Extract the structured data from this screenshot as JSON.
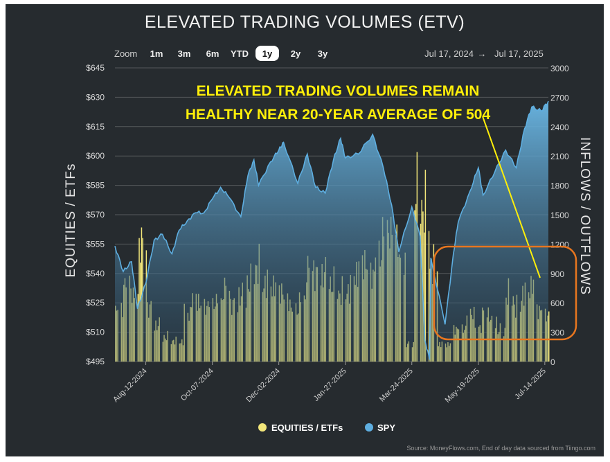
{
  "chart_data": {
    "type": "bar+area",
    "title": "ELEVATED TRADING VOLUMES (ETV)",
    "annotation": [
      "ELEVATED TRADING VOLUMES REMAIN",
      "HEALTHY NEAR 20-YEAR AVERAGE OF 504"
    ],
    "zoom": {
      "label": "Zoom",
      "options": [
        "1m",
        "3m",
        "6m",
        "YTD",
        "1y",
        "2y",
        "3y"
      ],
      "selected": "1y"
    },
    "range": {
      "from": "Jul 17, 2024",
      "to": "Jul 17, 2025",
      "separator": "→"
    },
    "ylabel_left": "EQUITIES / ETFs",
    "ylabel_right": "INFLOWS / OUTFLOWS",
    "y_left_ticks": [
      "$645",
      "$630",
      "$615",
      "$600",
      "$585",
      "$570",
      "$555",
      "$540",
      "$525",
      "$510",
      "$495"
    ],
    "y_right_ticks": [
      "3000",
      "2700",
      "2400",
      "2100",
      "1800",
      "1500",
      "1200",
      "900",
      "600",
      "300",
      "0"
    ],
    "ylim_left": [
      495,
      645
    ],
    "ylim_right": [
      0,
      3000
    ],
    "x_ticks": [
      "Aug-12-2024",
      "Oct-07-2024",
      "Dec-02-2024",
      "Jan-27-2025",
      "Mar-24-2025",
      "May-19-2025",
      "Jul-14-2025"
    ],
    "series": [
      {
        "name": "EQUITIES / ETFs",
        "type": "bar",
        "axis": "right",
        "color": "#f2e67a",
        "values_by_week": [
          600,
          900,
          760,
          1380,
          620,
          420,
          280,
          240,
          230,
          560,
          720,
          640,
          660,
          700,
          860,
          660,
          760,
          900,
          1080,
          900,
          880,
          820,
          700,
          600,
          720,
          1080,
          1000,
          1020,
          880,
          780,
          820,
          1020,
          1160,
          1020,
          1240,
          1520,
          1480,
          1120,
          200,
          1950,
          1750,
          1100,
          200,
          200,
          380,
          380,
          560,
          400,
          560,
          460,
          360,
          760,
          620,
          780,
          880,
          600,
          540
        ]
      },
      {
        "name": "SPY",
        "type": "area",
        "axis": "left",
        "color": "#5eaee0",
        "points": [
          [
            "Jul 17, 2024",
            554
          ],
          [
            "Jul 24, 2024",
            541
          ],
          [
            "Jul 31, 2024",
            546
          ],
          [
            "Aug 05, 2024",
            522
          ],
          [
            "Aug 12, 2024",
            535
          ],
          [
            "Aug 19, 2024",
            557
          ],
          [
            "Aug 26, 2024",
            560
          ],
          [
            "Sep 03, 2024",
            550
          ],
          [
            "Sep 09, 2024",
            562
          ],
          [
            "Sep 16, 2024",
            567
          ],
          [
            "Sep 23, 2024",
            571
          ],
          [
            "Sep 30, 2024",
            571
          ],
          [
            "Oct 07, 2024",
            578
          ],
          [
            "Oct 14, 2024",
            584
          ],
          [
            "Oct 21, 2024",
            579
          ],
          [
            "Oct 31, 2024",
            569
          ],
          [
            "Nov 06, 2024",
            590
          ],
          [
            "Nov 11, 2024",
            598
          ],
          [
            "Nov 15, 2024",
            585
          ],
          [
            "Nov 25, 2024",
            597
          ],
          [
            "Dec 02, 2024",
            603
          ],
          [
            "Dec 06, 2024",
            607
          ],
          [
            "Dec 18, 2024",
            586
          ],
          [
            "Dec 26, 2024",
            601
          ],
          [
            "Jan 02, 2025",
            584
          ],
          [
            "Jan 10, 2025",
            581
          ],
          [
            "Jan 17, 2025",
            598
          ],
          [
            "Jan 23, 2025",
            609
          ],
          [
            "Jan 27, 2025",
            599
          ],
          [
            "Feb 07, 2025",
            601
          ],
          [
            "Feb 19, 2025",
            611
          ],
          [
            "Feb 28, 2025",
            594
          ],
          [
            "Mar 07, 2025",
            575
          ],
          [
            "Mar 13, 2025",
            551
          ],
          [
            "Mar 24, 2025",
            574
          ],
          [
            "Mar 31, 2025",
            559
          ],
          [
            "Apr 04, 2025",
            506
          ],
          [
            "Apr 08, 2025",
            496
          ],
          [
            "Apr 09, 2025",
            548
          ],
          [
            "Apr 21, 2025",
            514
          ],
          [
            "Apr 28, 2025",
            550
          ],
          [
            "May 02, 2025",
            566
          ],
          [
            "May 12, 2025",
            582
          ],
          [
            "May 19, 2025",
            594
          ],
          [
            "May 23, 2025",
            580
          ],
          [
            "Jun 02, 2025",
            592
          ],
          [
            "Jun 11, 2025",
            603
          ],
          [
            "Jun 20, 2025",
            594
          ],
          [
            "Jun 27, 2025",
            614
          ],
          [
            "Jul 03, 2025",
            625
          ],
          [
            "Jul 11, 2025",
            623
          ],
          [
            "Jul 17, 2025",
            628
          ]
        ]
      }
    ],
    "legend": {
      "position": "bottom"
    },
    "grid": true,
    "highlight_box_color": "#e8761f",
    "source": "Source: MoneyFlows.com, End of day data sourced from Tiingo.com"
  }
}
